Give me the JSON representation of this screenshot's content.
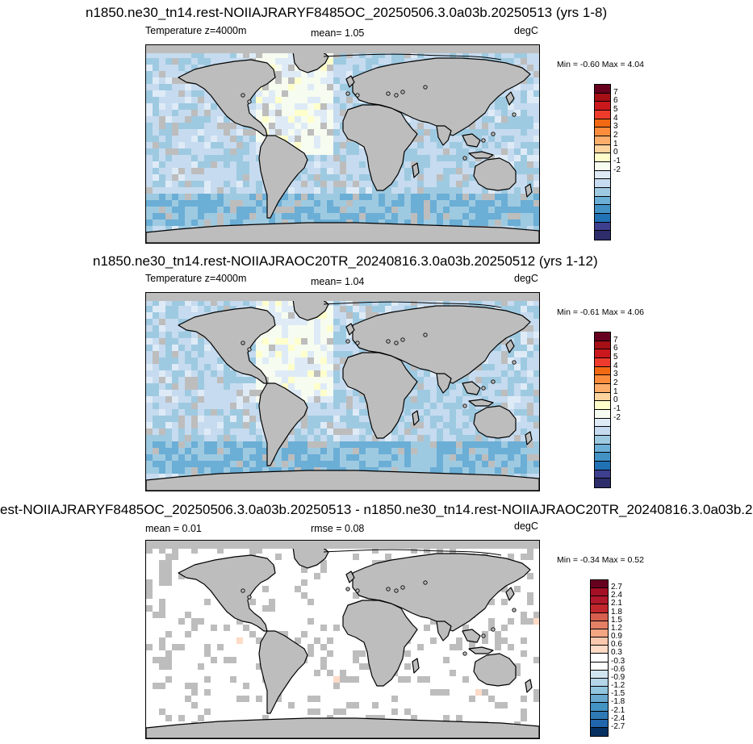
{
  "panels": [
    {
      "title": "n1850.ne30_tn14.rest-NOIIAJRARYF8485OC_20250506.3.0a03b.20250513 (yrs 1-8)",
      "left_label": "Temperature z=4000m",
      "center_label": "mean=   1.05",
      "right_label": "degC",
      "minmax": "Min =  -0.60 Max =   4.04",
      "colorbar": {
        "labels": [
          "7",
          "6",
          "5",
          "4",
          "3",
          "2",
          "1",
          "0",
          "-1",
          "-2"
        ],
        "colors": [
          "#67001f",
          "#a50f15",
          "#cb181d",
          "#ef3b2c",
          "#f16913",
          "#fd8d3c",
          "#fdae6b",
          "#fdd49e",
          "#ffffcc",
          "#f7fcf0",
          "#deebf7",
          "#c6dbef",
          "#9ecae1",
          "#6baed6",
          "#4292c6",
          "#2171b5",
          "#3f3f8f",
          "#2d2d6b"
        ]
      }
    },
    {
      "title": "n1850.ne30_tn14.rest-NOIIAJRAOC20TR_20240816.3.0a03b.20250512 (yrs 1-12)",
      "left_label": "Temperature z=4000m",
      "center_label": "mean=   1.04",
      "right_label": "degC",
      "minmax": "Min =  -0.61 Max =   4.06",
      "colorbar": {
        "labels": [
          "7",
          "6",
          "5",
          "4",
          "3",
          "2",
          "1",
          "0",
          "-1",
          "-2"
        ],
        "colors": [
          "#67001f",
          "#a50f15",
          "#cb181d",
          "#ef3b2c",
          "#f16913",
          "#fd8d3c",
          "#fdae6b",
          "#fdd49e",
          "#ffffcc",
          "#f7fcf0",
          "#deebf7",
          "#c6dbef",
          "#9ecae1",
          "#6baed6",
          "#4292c6",
          "#2171b5",
          "#3f3f8f",
          "#2d2d6b"
        ]
      }
    },
    {
      "title": "est-NOIIAJRARYF8485OC_20250506.3.0a03b.20250513 - n1850.ne30_tn14.rest-NOIIAJRAOC20TR_20240816.3.0a03b.20",
      "left_label": "mean =   0.01",
      "center_label": "rmse =   0.08",
      "right_label": "degC",
      "minmax": "Min =  -0.34 Max =   0.52",
      "colorbar": {
        "labels": [
          "2.7",
          "2.4",
          "2.1",
          "1.8",
          "1.5",
          "1.2",
          "0.9",
          "0.6",
          "0.3",
          "-0.3",
          "-0.6",
          "-0.9",
          "-1.2",
          "-1.5",
          "-1.8",
          "-2.1",
          "-2.4",
          "-2.7"
        ],
        "colors": [
          "#67001f",
          "#a50f26",
          "#b2182b",
          "#c1272d",
          "#d6604d",
          "#e48066",
          "#f4a582",
          "#f9c8ae",
          "#fddbc7",
          "#ffffff",
          "#ffffff",
          "#d1e5f0",
          "#b4d4e8",
          "#92c5de",
          "#6aa9d0",
          "#4393c3",
          "#2f79b5",
          "#2166ac",
          "#053061"
        ]
      }
    }
  ]
}
